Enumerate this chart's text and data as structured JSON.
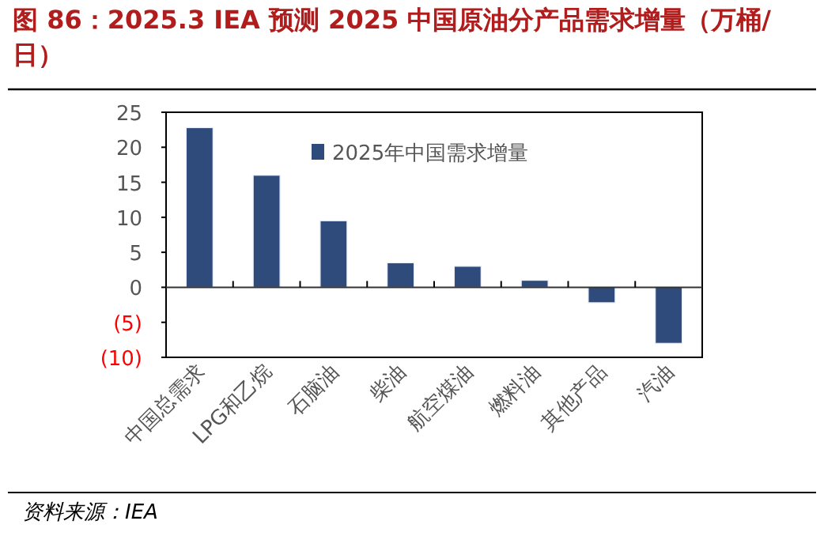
{
  "chart_data": {
    "type": "bar",
    "title": "图 86：2025.3 IEA 预测 2025 中国原油分产品需求增量（万桶/日）",
    "categories": [
      "中国总需求",
      "LPG和乙烷",
      "石脑油",
      "柴油",
      "航空煤油",
      "燃料油",
      "其他产品",
      "汽油"
    ],
    "series": [
      {
        "name": "2025年中国需求增量",
        "color": "#2f4b7c",
        "values": [
          22.8,
          16.0,
          9.5,
          3.5,
          3.0,
          1.0,
          -2.2,
          -8.0
        ]
      }
    ],
    "ylim": [
      -10,
      25
    ],
    "yticks": [
      {
        "value": -10,
        "label": "(10)"
      },
      {
        "value": -5,
        "label": "(5)"
      },
      0,
      5,
      10,
      15,
      20,
      25
    ],
    "legend": "top",
    "annotations": [
      "资料来源：IEA"
    ]
  }
}
